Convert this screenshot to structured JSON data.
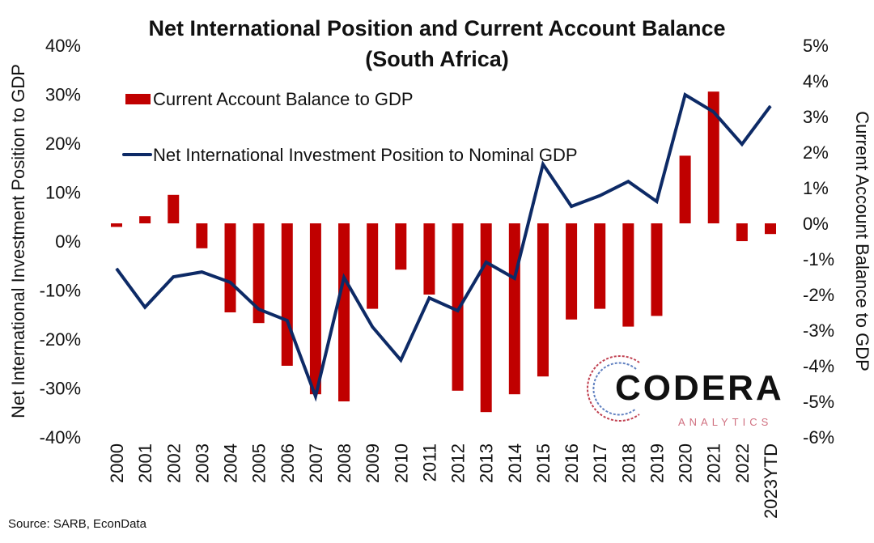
{
  "chart_data": {
    "type": "bar+line",
    "title": "Net International Position and Current Account Balance",
    "subtitle": "(South Africa)",
    "categories": [
      "2000",
      "2001",
      "2002",
      "2003",
      "2004",
      "2005",
      "2006",
      "2007",
      "2008",
      "2009",
      "2010",
      "2011",
      "2012",
      "2013",
      "2014",
      "2015",
      "2016",
      "2017",
      "2018",
      "2019",
      "2020",
      "2021",
      "2022",
      "2023YTD"
    ],
    "series": [
      {
        "name": "Current Account Balance to GDP",
        "type": "bar",
        "axis": "right",
        "color": "#c00000",
        "values": [
          -0.1,
          0.2,
          0.8,
          -0.7,
          -2.5,
          -2.8,
          -4.0,
          -4.8,
          -5.0,
          -2.4,
          -1.3,
          -2.0,
          -4.7,
          -5.3,
          -4.8,
          -4.3,
          -2.7,
          -2.4,
          -2.9,
          -2.6,
          1.9,
          3.7,
          -0.5,
          -0.3
        ]
      },
      {
        "name": "Net International Investment Position to Nominal GDP",
        "type": "line",
        "axis": "left",
        "color": "#0d2a66",
        "values": [
          -5.6,
          -13.5,
          -7.3,
          -6.3,
          -8.4,
          -13.9,
          -16.2,
          -31.7,
          -7.4,
          -17.5,
          -24.3,
          -11.6,
          -14.2,
          -4.3,
          -7.6,
          15.7,
          7.1,
          9.3,
          12.2,
          8.1,
          29.9,
          26.4,
          19.8,
          27.6
        ]
      }
    ],
    "ylabel": "Net International Investment Position to GDP",
    "y2label": "Current Account Balance to GDP",
    "ylim": [
      -40,
      40
    ],
    "y2lim": [
      -6,
      5
    ],
    "yticks": [
      "40%",
      "30%",
      "20%",
      "10%",
      "0%",
      "-10%",
      "-20%",
      "-30%",
      "-40%"
    ],
    "y2ticks": [
      "5%",
      "4%",
      "3%",
      "2%",
      "1%",
      "0%",
      "-1%",
      "-2%",
      "-3%",
      "-4%",
      "-5%",
      "-6%"
    ],
    "legend": "top-left",
    "grid": false
  },
  "source": "Source: SARB, EconData",
  "logo": {
    "name": "CODERA",
    "sub": "ANALYTICS"
  }
}
